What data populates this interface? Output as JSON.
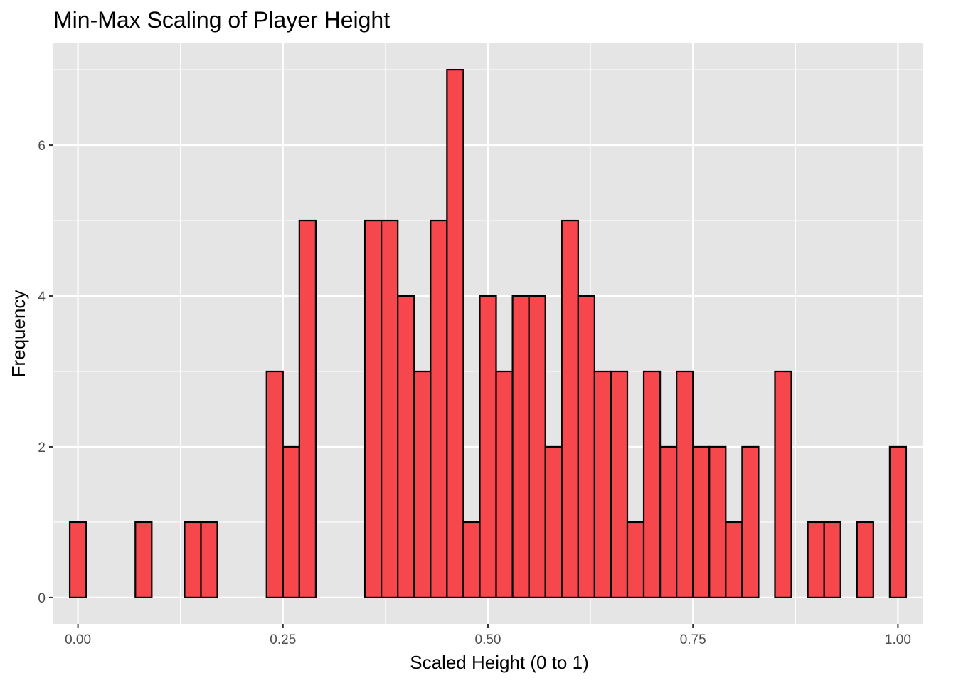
{
  "chart_data": {
    "type": "bar",
    "title": "Min-Max Scaling of Player Height",
    "xlabel": "Scaled Height (0 to 1)",
    "ylabel": "Frequency",
    "xlim": [
      -0.03,
      1.03
    ],
    "ylim": [
      -0.35,
      7.35
    ],
    "bin_width": 0.02,
    "x_ticks": [
      0,
      0.25,
      0.5,
      0.75,
      1
    ],
    "x_tick_labels": [
      "0.00",
      "0.25",
      "0.50",
      "0.75",
      "1.00"
    ],
    "y_ticks": [
      0,
      2,
      4,
      6
    ],
    "y_tick_labels": [
      "0",
      "2",
      "4",
      "6"
    ],
    "x": [
      0.0,
      0.02,
      0.04,
      0.06,
      0.08,
      0.1,
      0.12,
      0.14,
      0.16,
      0.18,
      0.2,
      0.22,
      0.24,
      0.26,
      0.28,
      0.3,
      0.32,
      0.34,
      0.36,
      0.38,
      0.4,
      0.42,
      0.44,
      0.46,
      0.48,
      0.5,
      0.52,
      0.54,
      0.56,
      0.58,
      0.6,
      0.62,
      0.64,
      0.66,
      0.68,
      0.7,
      0.72,
      0.74,
      0.76,
      0.78,
      0.8,
      0.82,
      0.84,
      0.86,
      0.88,
      0.9,
      0.92,
      0.94,
      0.96,
      0.98,
      1.0
    ],
    "values": [
      1,
      0,
      0,
      0,
      1,
      0,
      0,
      1,
      1,
      0,
      0,
      0,
      3,
      2,
      5,
      0,
      0,
      0,
      5,
      5,
      4,
      3,
      5,
      7,
      1,
      4,
      3,
      4,
      4,
      2,
      5,
      4,
      3,
      3,
      1,
      3,
      2,
      3,
      2,
      2,
      1,
      2,
      0,
      3,
      0,
      1,
      1,
      0,
      1,
      0,
      2
    ],
    "fill_color": "#f5474c",
    "outline_color": "#000000",
    "panel_color": "#e5e5e5",
    "grid_color": "#ffffff",
    "grid": true
  }
}
